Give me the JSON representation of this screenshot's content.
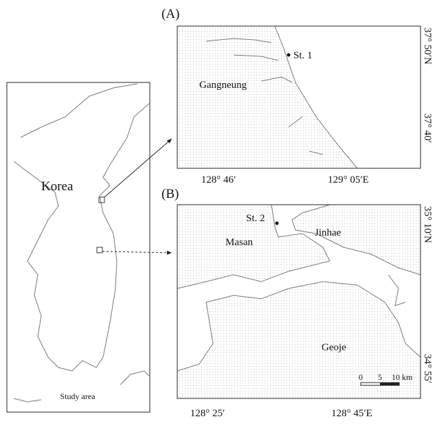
{
  "overview": {
    "country": "Korea",
    "inset_label": "Study area"
  },
  "panel_a": {
    "label": "(A)",
    "place": "Gangneung",
    "station": "St. 1",
    "lat_labels": [
      "37° 50′N",
      "37° 40′"
    ],
    "lon_labels": [
      "128° 46′",
      "129° 05′E"
    ]
  },
  "panel_b": {
    "label": "(B)",
    "places": [
      "Masan",
      "Jinhae",
      "Geoje"
    ],
    "station": "St. 2",
    "lat_labels": [
      "35° 10′N",
      "34° 55′"
    ],
    "lon_labels": [
      "128° 25′",
      "128° 45′E"
    ],
    "scale_labels": [
      "0",
      "5",
      "10 km"
    ]
  }
}
